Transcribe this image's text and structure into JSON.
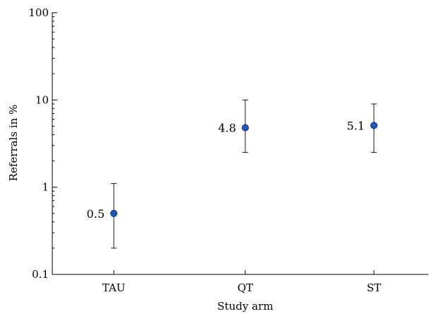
{
  "chart_data": {
    "type": "scatter",
    "title": "",
    "xlabel": "Study arm",
    "ylabel": "Referrals in %",
    "yscale": "log",
    "ylim": [
      0.1,
      100
    ],
    "y_ticks": [
      "0.1",
      "1",
      "10",
      "100"
    ],
    "grid": false,
    "categories": [
      "TAU",
      "QT",
      "ST"
    ],
    "series": [
      {
        "values": [
          0.5,
          4.8,
          5.1
        ],
        "labels": [
          "0.5",
          "4.8",
          "5.1"
        ],
        "error_low": [
          0.2,
          2.5,
          2.5
        ],
        "error_high": [
          1.1,
          10,
          9
        ],
        "color": "#1f5bbd"
      }
    ]
  }
}
